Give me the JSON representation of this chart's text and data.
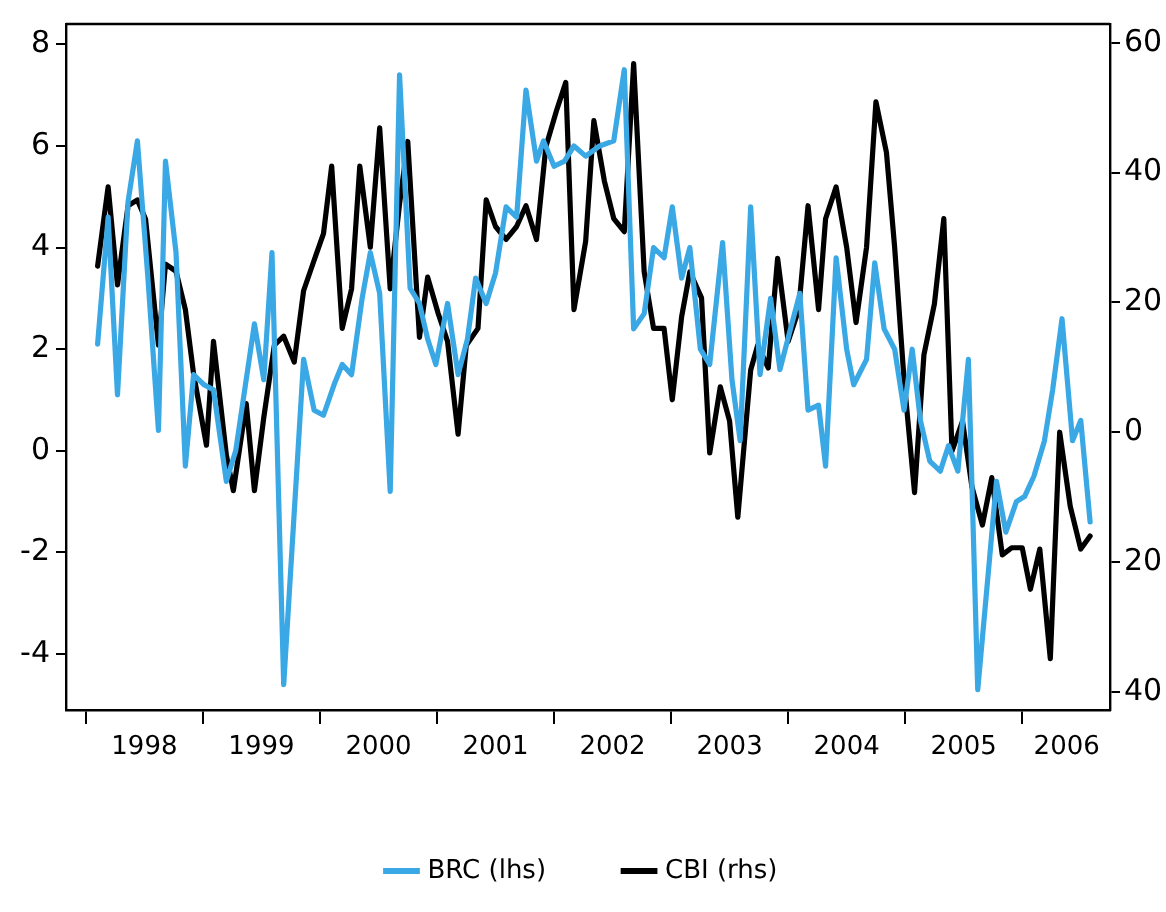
{
  "chart_data": {
    "type": "line",
    "xlim": [
      1997.83,
      2006.75
    ],
    "xticks": [
      {
        "value": 1998,
        "label": null
      },
      {
        "value": 1998.5,
        "label": "1998"
      },
      {
        "value": 1999,
        "label": null
      },
      {
        "value": 1999.5,
        "label": "1999"
      },
      {
        "value": 2000,
        "label": null
      },
      {
        "value": 2000.5,
        "label": "2000"
      },
      {
        "value": 2001,
        "label": null
      },
      {
        "value": 2001.5,
        "label": "2001"
      },
      {
        "value": 2002,
        "label": null
      },
      {
        "value": 2002.5,
        "label": "2002"
      },
      {
        "value": 2003,
        "label": null
      },
      {
        "value": 2003.5,
        "label": "2003"
      },
      {
        "value": 2004,
        "label": null
      },
      {
        "value": 2004.5,
        "label": "2004"
      },
      {
        "value": 2005,
        "label": null
      },
      {
        "value": 2005.5,
        "label": "2005"
      },
      {
        "value": 2006,
        "label": null
      },
      {
        "value": 2006.38,
        "label": "2006"
      }
    ],
    "ylim": [
      -5.1,
      8.4
    ],
    "yticks": [
      -4,
      -2,
      0,
      2,
      4,
      6,
      8
    ],
    "y2lim": [
      -42.8,
      62.9
    ],
    "y2ticks": [
      {
        "value": -40,
        "label": "40"
      },
      {
        "value": -20,
        "label": "20"
      },
      0,
      20,
      40,
      60
    ],
    "grid": false,
    "legend": "bottom",
    "marker": "none",
    "series": [
      {
        "name": "BRC (lhs)",
        "color": "#3aa8e4",
        "x": [
          1998.1,
          1998.19,
          1998.27,
          1998.36,
          1998.44,
          1998.53,
          1998.62,
          1998.68,
          1998.77,
          1998.85,
          1998.92,
          1999.01,
          1999.09,
          1999.2,
          1999.28,
          1999.44,
          1999.52,
          1999.59,
          1999.69,
          1999.86,
          1999.95,
          2000.03,
          2000.12,
          2000.19,
          2000.27,
          2000.36,
          2000.43,
          2000.51,
          2000.6,
          2000.68,
          2000.77,
          2000.85,
          2000.92,
          2000.99,
          2001.09,
          2001.18,
          2001.26,
          2001.33,
          2001.42,
          2001.5,
          2001.59,
          2001.68,
          2001.76,
          2001.85,
          2001.91,
          2002.0,
          2002.09,
          2002.17,
          2002.27,
          2002.39,
          2002.51,
          2002.6,
          2002.68,
          2002.77,
          2002.85,
          2002.94,
          2003.01,
          2003.09,
          2003.16,
          2003.25,
          2003.33,
          2003.44,
          2003.52,
          2003.59,
          2003.68,
          2003.76,
          2003.85,
          2003.93,
          2004.02,
          2004.1,
          2004.17,
          2004.26,
          2004.32,
          2004.41,
          2004.5,
          2004.56,
          2004.67,
          2004.74,
          2004.82,
          2004.91,
          2004.99,
          2005.06,
          2005.13,
          2005.21,
          2005.3,
          2005.37,
          2005.45,
          2005.54,
          2005.62,
          2005.71,
          2005.78,
          2005.86,
          2005.95,
          2006.02,
          2006.1,
          2006.19,
          2006.26,
          2006.34,
          2006.43,
          2006.5,
          2006.58
        ],
        "values": [
          2.1,
          4.6,
          1.1,
          4.9,
          6.1,
          3.4,
          0.4,
          5.7,
          3.9,
          -0.3,
          1.5,
          1.3,
          1.2,
          -0.6,
          0.0,
          2.5,
          1.4,
          3.9,
          -4.6,
          1.8,
          0.8,
          0.7,
          1.3,
          1.7,
          1.5,
          3.0,
          3.9,
          3.1,
          -0.8,
          7.4,
          3.2,
          2.9,
          2.2,
          1.7,
          2.9,
          1.5,
          2.2,
          3.4,
          2.9,
          3.5,
          4.8,
          4.6,
          7.1,
          5.7,
          6.1,
          5.6,
          5.7,
          6.0,
          5.8,
          6.0,
          6.1,
          7.5,
          2.4,
          2.7,
          4.0,
          3.8,
          4.8,
          3.4,
          4.0,
          2.0,
          1.7,
          4.1,
          1.4,
          0.2,
          4.8,
          1.5,
          3.0,
          1.6,
          2.4,
          3.1,
          0.8,
          0.9,
          -0.3,
          3.8,
          2.0,
          1.3,
          1.8,
          3.7,
          2.4,
          2.0,
          0.8,
          2.0,
          0.6,
          -0.2,
          -0.4,
          0.1,
          -0.4,
          1.8,
          -4.7,
          -2.4,
          -0.6,
          -1.6,
          -1.0,
          -0.9,
          -0.5,
          0.2,
          1.2,
          2.6,
          0.2,
          0.6,
          -1.4
        ]
      },
      {
        "name": "CBI (rhs)",
        "color": "#000000",
        "axis": "y2",
        "x": [
          1998.1,
          1998.19,
          1998.27,
          1998.36,
          1998.44,
          1998.51,
          1998.62,
          1998.68,
          1998.77,
          1998.85,
          1998.92,
          1999.03,
          1999.09,
          1999.2,
          1999.26,
          1999.37,
          1999.44,
          1999.52,
          1999.61,
          1999.69,
          1999.78,
          1999.86,
          1999.95,
          2000.03,
          2000.1,
          2000.19,
          2000.27,
          2000.34,
          2000.43,
          2000.51,
          2000.6,
          2000.68,
          2000.75,
          2000.85,
          2000.92,
          2001.01,
          2001.09,
          2001.18,
          2001.25,
          2001.35,
          2001.42,
          2001.5,
          2001.59,
          2001.68,
          2001.76,
          2001.85,
          2001.93,
          2002.02,
          2002.1,
          2002.17,
          2002.27,
          2002.34,
          2002.43,
          2002.51,
          2002.6,
          2002.68,
          2002.77,
          2002.85,
          2002.94,
          2003.01,
          2003.09,
          2003.16,
          2003.26,
          2003.33,
          2003.42,
          2003.5,
          2003.57,
          2003.68,
          2003.74,
          2003.83,
          2003.91,
          2004.0,
          2004.09,
          2004.17,
          2004.26,
          2004.32,
          2004.41,
          2004.5,
          2004.58,
          2004.67,
          2004.75,
          2004.84,
          2004.91,
          2004.99,
          2005.08,
          2005.16,
          2005.25,
          2005.33,
          2005.4,
          2005.49,
          2005.57,
          2005.66,
          2005.74,
          2005.83,
          2005.91,
          2006.0,
          2006.07,
          2006.15,
          2006.24,
          2006.32,
          2006.41,
          2006.5,
          2006.58
        ],
        "values": [
          25.6,
          37.8,
          22.7,
          34.9,
          35.8,
          32.8,
          13.4,
          25.9,
          24.8,
          18.9,
          9.0,
          -2.0,
          14.0,
          -3.5,
          -9.0,
          4.4,
          -9.0,
          2.3,
          13.4,
          14.8,
          10.8,
          21.8,
          26.5,
          30.6,
          41.0,
          16.0,
          22.1,
          41.0,
          28.5,
          46.9,
          22.1,
          35.2,
          44.8,
          14.6,
          23.9,
          18.3,
          14.0,
          -0.3,
          13.4,
          16.0,
          35.8,
          31.7,
          29.7,
          31.7,
          34.9,
          29.7,
          44.0,
          49.5,
          53.9,
          18.9,
          29.4,
          48.0,
          38.7,
          32.9,
          30.9,
          56.8,
          24.7,
          16.0,
          16.0,
          5.0,
          17.8,
          24.7,
          20.7,
          -3.2,
          7.0,
          1.7,
          -13.1,
          9.6,
          13.4,
          9.9,
          26.8,
          14.0,
          18.9,
          34.9,
          18.9,
          32.9,
          37.8,
          28.5,
          16.9,
          28.5,
          50.9,
          43.1,
          28.5,
          8.2,
          -9.3,
          11.9,
          19.8,
          32.9,
          -2.9,
          1.7,
          -8.4,
          -14.3,
          -7.0,
          -18.9,
          -17.8,
          -17.8,
          -24.2,
          -18.0,
          -34.9,
          0.0,
          -11.4,
          -18.0,
          -16.0
        ]
      }
    ]
  }
}
